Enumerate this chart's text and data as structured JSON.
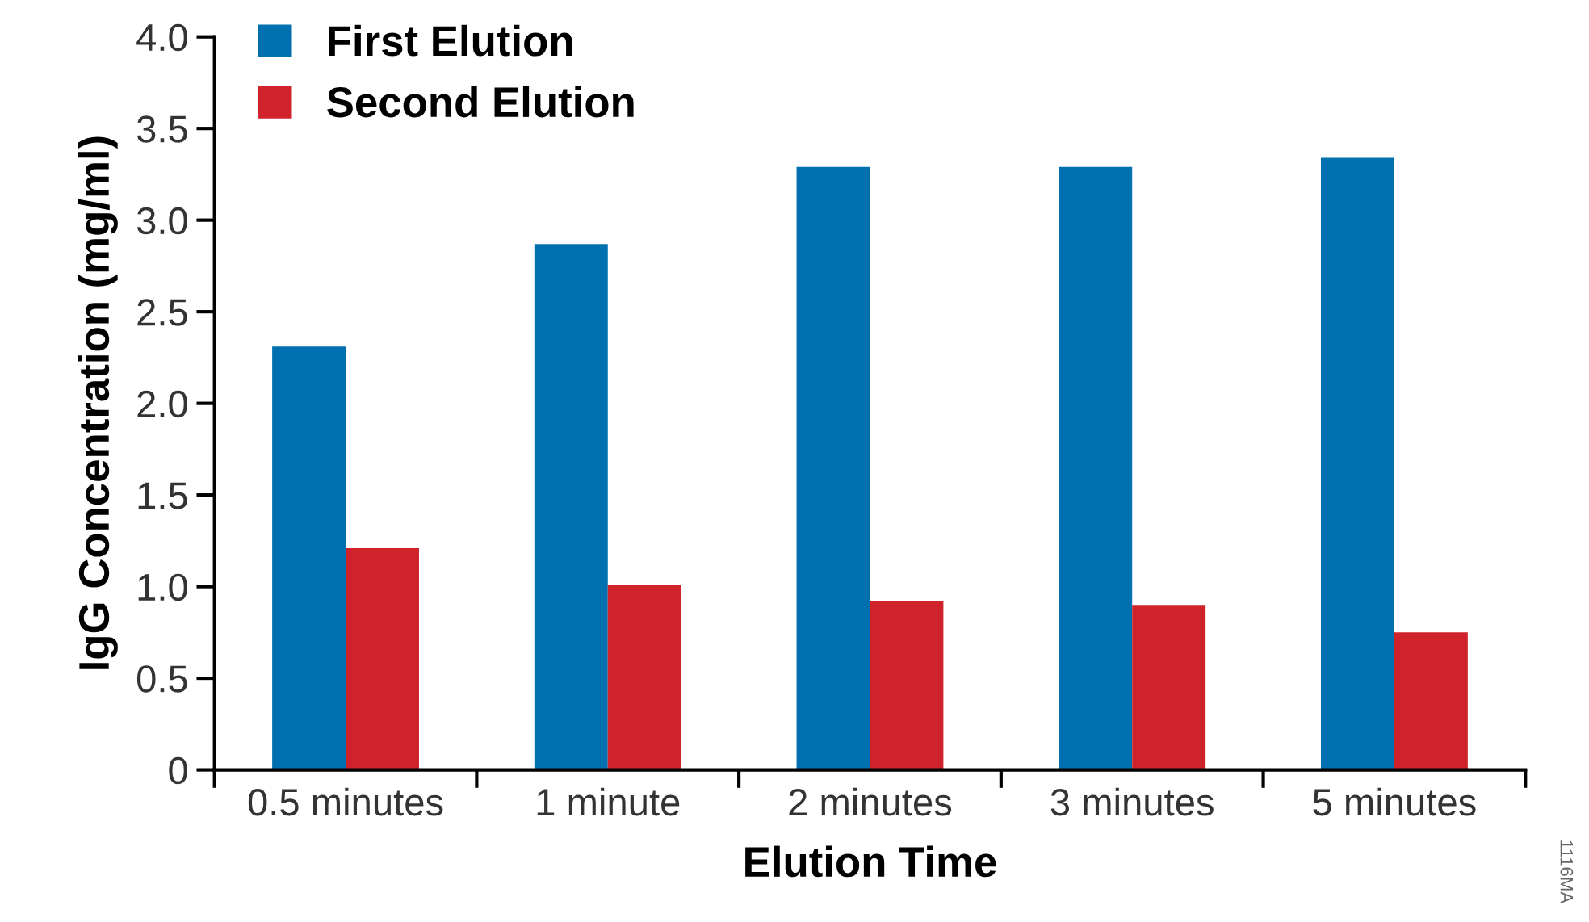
{
  "chart_data": {
    "type": "bar",
    "xlabel": "Elution Time",
    "ylabel": "IgG Concentration (mg/ml)",
    "categories": [
      "0.5 minutes",
      "1 minute",
      "2 minutes",
      "3 minutes",
      "5 minutes"
    ],
    "series": [
      {
        "name": "First Elution",
        "color": "#0070b0",
        "values": [
          2.31,
          2.87,
          3.29,
          3.29,
          3.34
        ]
      },
      {
        "name": "Second Elution",
        "color": "#d0222a",
        "values": [
          1.21,
          1.01,
          0.92,
          0.9,
          0.75
        ]
      }
    ],
    "ylim": [
      0,
      4.0
    ],
    "yticks": [
      0,
      {
        "value": 0.5,
        "label": "0.5"
      },
      {
        "value": 1.0,
        "label": "1.0"
      },
      {
        "value": 1.5,
        "label": "1.5"
      },
      {
        "value": 2.0,
        "label": "2.0"
      },
      {
        "value": 2.5,
        "label": "2.5"
      },
      {
        "value": 3.0,
        "label": "3.0"
      },
      {
        "value": 3.5,
        "label": "3.5"
      },
      {
        "value": 4.0,
        "label": "4.0"
      }
    ],
    "legend": "top left",
    "annotations": [
      "1116MA"
    ]
  }
}
